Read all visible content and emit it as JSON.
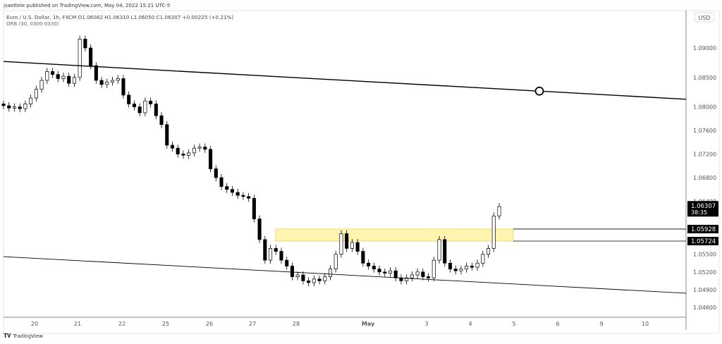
{
  "publisher_line": "jsaettele published on TradingView.com, May 04, 2022 15:21 UTC-5",
  "symbol_line": "Euro / U.S. Dollar, 1h, FXCM  O1.06082  H1.06310  L1.06050  C1.06307  +0.00225 (+0.21%)",
  "indicator_line": "ORB (30, 0300-0330)",
  "currency_badge": "USD",
  "logo_text": "TradingView",
  "chart_data": {
    "type": "candlestick",
    "interval": "1h",
    "y_tick_labels": [
      "1.09000",
      "1.08500",
      "1.08000",
      "1.07600",
      "1.07200",
      "1.06800",
      "1.06400",
      "1.05500",
      "1.05200",
      "1.04900",
      "1.04600"
    ],
    "y_ticks": [
      1.09,
      1.085,
      1.08,
      1.076,
      1.072,
      1.068,
      1.064,
      1.055,
      1.052,
      1.049,
      1.046
    ],
    "ylim": [
      1.0435,
      1.0965
    ],
    "x_tick_labels": [
      "20",
      "21",
      "22",
      "25",
      "26",
      "27",
      "28",
      "May",
      "3",
      "4",
      "5",
      "6",
      "9",
      "10"
    ],
    "closes": [
      1.0802,
      1.0798,
      1.08,
      1.0797,
      1.0805,
      1.0815,
      1.083,
      1.0845,
      1.086,
      1.0855,
      1.0848,
      1.0852,
      1.084,
      1.085,
      1.0915,
      1.09,
      1.087,
      1.0845,
      1.0838,
      1.0842,
      1.0845,
      1.0848,
      1.082,
      1.0805,
      1.08,
      1.079,
      1.081,
      1.0805,
      1.0785,
      1.077,
      1.0735,
      1.073,
      1.072,
      1.0718,
      1.0722,
      1.073,
      1.0732,
      1.0728,
      1.0695,
      1.068,
      1.0665,
      1.066,
      1.0655,
      1.065,
      1.0648,
      1.0645,
      1.061,
      1.0575,
      1.054,
      1.056,
      1.0555,
      1.054,
      1.053,
      1.0512,
      1.0515,
      1.0505,
      1.0502,
      1.0508,
      1.0505,
      1.0512,
      1.0525,
      1.055,
      1.0585,
      1.056,
      1.057,
      1.0555,
      1.0535,
      1.053,
      1.0525,
      1.052,
      1.0518,
      1.0522,
      1.051,
      1.0505,
      1.051,
      1.0515,
      1.052,
      1.0512,
      1.051,
      1.054,
      1.0575,
      1.0535,
      1.0525,
      1.0522,
      1.0525,
      1.053,
      1.0528,
      1.0535,
      1.055,
      1.056,
      1.0615,
      1.0631
    ],
    "upper_trendline": [
      1.0877,
      1.0813
    ],
    "lower_trendline": [
      1.0546,
      1.0484
    ],
    "zone": {
      "top": 1.05928,
      "bottom": 1.05724,
      "color": "#fff5b0"
    },
    "zone_labels": [
      "1.05928",
      "1.05724"
    ],
    "last_price": "1.06307",
    "last_price_value": 1.06307,
    "countdown": "38:35",
    "up_color": "#ffffff",
    "down_color": "#000000"
  }
}
